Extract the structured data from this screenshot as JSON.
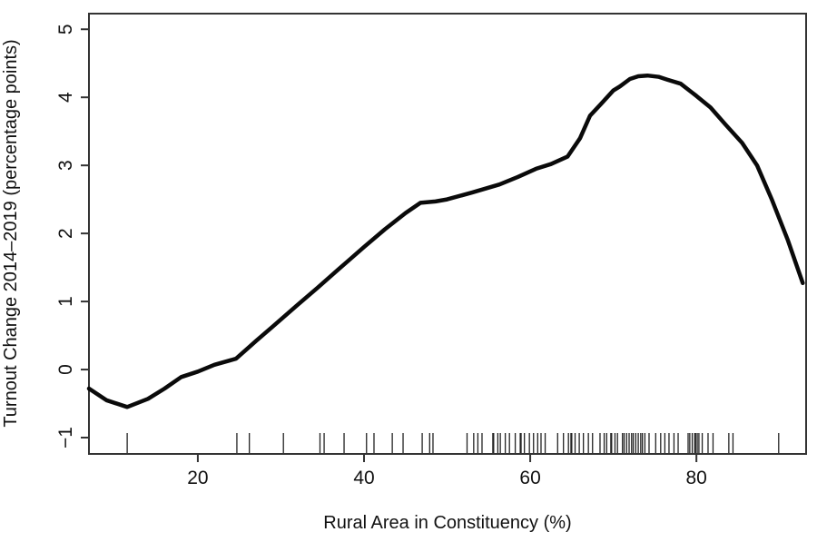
{
  "figure": {
    "background": "#ffffff",
    "curve_color": "#0a0a0a",
    "frame_color": "#333333",
    "text_color": "#111111"
  },
  "chart_data": {
    "type": "line",
    "title": "",
    "xlabel": "Rural Area in Constituency (%)",
    "ylabel": "Turnout Change 2014–2019 (percentage points)",
    "x_ticks": [
      20,
      40,
      60,
      80
    ],
    "y_ticks": [
      -1,
      0,
      1,
      2,
      3,
      4,
      5
    ],
    "xlim": [
      6.9,
      93.2
    ],
    "ylim": [
      -1.24,
      5.23
    ],
    "grid": false,
    "legend": null,
    "frame": "box",
    "series": [
      {
        "name": "smoothed-turnout-change",
        "x": [
          6.9,
          9,
          11.5,
          14,
          16,
          18,
          20,
          22,
          24.6,
          27,
          29,
          32,
          34.4,
          37,
          40,
          42.5,
          45,
          46.8,
          48.6,
          50,
          53,
          56.3,
          58.5,
          60.7,
          62.5,
          64.5,
          66,
          67.2,
          68.5,
          70,
          70.8,
          72,
          73,
          74.1,
          75.5,
          76.5,
          78.1,
          80,
          81.7,
          83.5,
          85.5,
          87.3,
          89.1,
          91,
          92.8
        ],
        "y": [
          -0.28,
          -0.45,
          -0.55,
          -0.43,
          -0.28,
          -0.11,
          -0.03,
          0.07,
          0.16,
          0.42,
          0.63,
          0.95,
          1.2,
          1.48,
          1.8,
          2.06,
          2.3,
          2.45,
          2.47,
          2.5,
          2.6,
          2.72,
          2.83,
          2.95,
          3.02,
          3.13,
          3.4,
          3.73,
          3.9,
          4.1,
          4.16,
          4.27,
          4.31,
          4.32,
          4.3,
          4.26,
          4.2,
          4.02,
          3.85,
          3.6,
          3.33,
          3.0,
          2.49,
          1.9,
          1.27
        ]
      }
    ],
    "rug_x": [
      11.5,
      24.7,
      26.2,
      30.3,
      34.7,
      35.2,
      37.6,
      40.3,
      41.2,
      43.4,
      44.7,
      47.0,
      47.9,
      48.3,
      52.4,
      53.2,
      53.7,
      54.2,
      55.5,
      55.6,
      56.1,
      56.4,
      57.0,
      57.5,
      58.2,
      58.8,
      58.9,
      59.3,
      59.9,
      60.4,
      60.9,
      61.3,
      61.8,
      63.3,
      64.0,
      64.6,
      64.9,
      65.0,
      65.4,
      65.9,
      66.4,
      67.0,
      67.5,
      68.4,
      68.9,
      69.2,
      69.7,
      69.8,
      70.2,
      70.5,
      71.1,
      71.3,
      71.6,
      71.9,
      72.2,
      72.4,
      72.7,
      73.0,
      73.3,
      73.5,
      73.8,
      74.3,
      75.1,
      75.7,
      76.2,
      76.7,
      77.3,
      77.8,
      79.0,
      79.2,
      79.5,
      79.8,
      79.9,
      80.1,
      80.3,
      80.7,
      81.4,
      82.0,
      83.9,
      84.4,
      89.9
    ]
  }
}
